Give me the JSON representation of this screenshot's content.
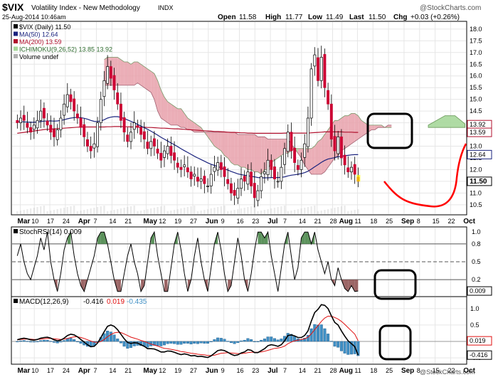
{
  "header": {
    "ticker": "$VIX",
    "name": "Volatility Index - New Methodology",
    "exchange": "INDX",
    "date": "25-Aug-2014 10:46am",
    "open_label": "Open",
    "open": "11.58",
    "high_label": "High",
    "high": "11.77",
    "low_label": "Low",
    "low": "11.49",
    "last_label": "Last",
    "last": "11.50",
    "chg_label": "Chg",
    "chg": "+0.03 (+0.26%)",
    "watermark": "@StockCharts.com",
    "footer_watermark": "@StockCharts.com"
  },
  "colors": {
    "up": "#ffffff",
    "down": "#cc0033",
    "ma50": "#1a237e",
    "ma200": "#b0102d",
    "cloud_bear": "#e8a0aa",
    "cloud_bull": "#a6d79a",
    "volume": "#b0b0b0",
    "macd": "#000000",
    "signal": "#e01010",
    "histogram": "#3f8fc4",
    "annotation": "#000000",
    "drawn_curve": "#ff0000"
  },
  "chart_data": [
    {
      "type": "candlestick",
      "panel": "price",
      "legend": [
        "$VIX (Daily) 11.50",
        "MA(50) 12.64",
        "MA(200) 13.59",
        "ICHIMOKU(9,26,52) 13.85 13.92",
        "Volume undef"
      ],
      "x_labels": [
        "Mar",
        "10",
        "17",
        "24",
        "Apr",
        "7",
        "14",
        "21",
        "May",
        "12",
        "19",
        "27",
        "Jun",
        "9",
        "16",
        "23",
        "Jul",
        "7",
        "14",
        "21",
        "28",
        "Aug",
        "11",
        "18",
        "25",
        "Sep",
        "8",
        "15",
        "22",
        "Oct"
      ],
      "y_ticks": [
        10.5,
        11.0,
        11.5,
        12.0,
        12.5,
        13.0,
        13.5,
        14.0,
        14.5,
        15.0,
        15.5,
        16.0,
        16.5,
        17.0,
        17.5,
        18.0
      ],
      "ylim": [
        10.1,
        18.3
      ],
      "price_tags": [
        {
          "value": 13.92,
          "text": "13.92"
        },
        {
          "value": 13.59,
          "text": "13.59"
        },
        {
          "value": 12.64,
          "text": "12.64"
        },
        {
          "value": 11.5,
          "text": "11.50"
        }
      ],
      "close": [
        14.0,
        14.2,
        14.1,
        13.8,
        13.6,
        13.9,
        14.1,
        14.5,
        14.2,
        13.9,
        13.6,
        13.4,
        13.7,
        14.2,
        14.8,
        15.2,
        14.9,
        14.5,
        14.2,
        13.8,
        13.4,
        13.0,
        12.8,
        13.1,
        14.0,
        15.0,
        15.8,
        16.4,
        15.9,
        15.4,
        14.8,
        14.1,
        13.6,
        13.2,
        13.6,
        14.0,
        13.8,
        13.5,
        13.3,
        12.9,
        13.2,
        13.0,
        12.7,
        12.4,
        12.8,
        13.0,
        12.6,
        12.4,
        12.1,
        12.0,
        12.2,
        11.9,
        11.6,
        11.8,
        11.5,
        11.6,
        11.4,
        11.3,
        11.8,
        12.1,
        12.3,
        12.0,
        11.7,
        11.4,
        11.0,
        10.9,
        11.2,
        11.6,
        11.5,
        11.9,
        11.3,
        10.8,
        11.1,
        11.7,
        11.9,
        12.4,
        12.0,
        11.6,
        11.5,
        12.1,
        12.9,
        13.6,
        12.8,
        12.3,
        12.0,
        12.4,
        13.1,
        14.2,
        16.3,
        16.9,
        15.8,
        16.8,
        15.5,
        14.8,
        13.3,
        12.8,
        13.4,
        12.5,
        12.2,
        11.9,
        12.1,
        11.8,
        11.5
      ],
      "ma50": [
        14.05,
        14.05,
        14.04,
        14.03,
        14.02,
        14.02,
        14.03,
        14.05,
        14.07,
        14.08,
        14.08,
        14.07,
        14.08,
        14.1,
        14.13,
        14.17,
        14.2,
        14.22,
        14.23,
        14.22,
        14.19,
        14.15,
        14.1,
        14.06,
        14.05,
        14.08,
        14.13,
        14.2,
        14.24,
        14.26,
        14.26,
        14.23,
        14.18,
        14.12,
        14.06,
        14.0,
        13.93,
        13.86,
        13.79,
        13.72,
        13.64,
        13.56,
        13.47,
        13.38,
        13.3,
        13.22,
        13.14,
        13.06,
        12.98,
        12.89,
        12.81,
        12.73,
        12.65,
        12.57,
        12.5,
        12.43,
        12.36,
        12.29,
        12.23,
        12.18,
        12.13,
        12.08,
        12.03,
        11.98,
        11.92,
        11.87,
        11.82,
        11.79,
        11.76,
        11.74,
        11.71,
        11.69,
        11.66,
        11.65,
        11.65,
        11.65,
        11.66,
        11.66,
        11.66,
        11.67,
        11.69,
        11.73,
        11.76,
        11.78,
        11.8,
        11.83,
        11.87,
        11.93,
        12.02,
        12.12,
        12.21,
        12.31,
        12.39,
        12.45,
        12.48,
        12.51,
        12.55,
        12.57,
        12.59,
        12.61,
        12.63,
        12.64,
        12.64
      ],
      "ma200": [
        13.55,
        13.57,
        13.59,
        13.61,
        13.63,
        13.65,
        13.67,
        13.69,
        13.71,
        13.72,
        13.73,
        13.74,
        13.75,
        13.76,
        13.77,
        13.78,
        13.79,
        13.8,
        13.81,
        13.82,
        13.82,
        13.82,
        13.82,
        13.82,
        13.82,
        13.82,
        13.82,
        13.83,
        13.83,
        13.84,
        13.84,
        13.84,
        13.83,
        13.83,
        13.82,
        13.82,
        13.82,
        13.81,
        13.81,
        13.8,
        13.8,
        13.79,
        13.78,
        13.77,
        13.77,
        13.76,
        13.75,
        13.74,
        13.74,
        13.73,
        13.72,
        13.71,
        13.7,
        13.69,
        13.68,
        13.67,
        13.66,
        13.65,
        13.64,
        13.63,
        13.63,
        13.62,
        13.61,
        13.6,
        13.59,
        13.59,
        13.58,
        13.57,
        13.57,
        13.56,
        13.56,
        13.55,
        13.55,
        13.55,
        13.55,
        13.55,
        13.55,
        13.55,
        13.55,
        13.55,
        13.56,
        13.56,
        13.56,
        13.56,
        13.56,
        13.56,
        13.56,
        13.56,
        13.57,
        13.58,
        13.59,
        13.6,
        13.61,
        13.61,
        13.61,
        13.61,
        13.61,
        13.61,
        13.6,
        13.6,
        13.6,
        13.59,
        13.59
      ],
      "cloud_series": [
        {
          "name": "Senkou A",
          "start_index": 26,
          "values": [
            16.7,
            16.8,
            16.8,
            16.8,
            16.8,
            16.7,
            16.6,
            16.6,
            16.5,
            16.6,
            16.6,
            16.5,
            16.4,
            16.3,
            16.2,
            16.1,
            15.8,
            15.4,
            15.1,
            14.9,
            14.8,
            14.7,
            14.6,
            14.6,
            14.4,
            14.2,
            14.1,
            14.0,
            13.9,
            13.8,
            13.6,
            13.4,
            13.2,
            13.0,
            12.9,
            12.8,
            12.6,
            12.5,
            12.3,
            12.2,
            12.2,
            12.1,
            12.1,
            12.0,
            12.0,
            11.9,
            11.9,
            11.8,
            12.0,
            12.0,
            12.3,
            12.4,
            12.5,
            12.6,
            12.7,
            12.7,
            12.8,
            12.9,
            12.9,
            12.9,
            12.9,
            12.9,
            12.9,
            13.0,
            13.2,
            13.3,
            13.5,
            13.7,
            13.9,
            14.1,
            14.1,
            14.2,
            14.3,
            14.3,
            14.4,
            14.4,
            14.3,
            14.1,
            14.0,
            13.9,
            13.9,
            13.9,
            13.9,
            13.9,
            13.8,
            13.8,
            13.8
          ]
        },
        {
          "name": "Senkou B",
          "start_index": 26,
          "values": [
            15.6,
            15.6,
            15.6,
            15.6,
            15.6,
            15.6,
            15.6,
            15.6,
            15.6,
            15.6,
            15.7,
            15.6,
            15.5,
            15.4,
            15.3,
            15.0,
            14.5,
            14.2,
            14.1,
            14.0,
            13.9,
            13.9,
            13.9,
            13.8,
            13.8,
            13.7,
            13.7,
            13.6,
            13.6,
            13.6,
            13.6,
            13.6,
            13.6,
            13.6,
            13.6,
            13.6,
            13.6,
            13.6,
            13.6,
            13.6,
            13.5,
            13.5,
            13.5,
            13.5,
            13.5,
            13.5,
            13.4,
            13.4,
            13.4,
            13.3,
            13.3,
            13.3,
            13.3,
            13.3,
            13.3,
            13.3,
            13.1,
            12.9,
            12.7,
            12.5,
            12.2,
            12.0,
            11.8,
            11.8,
            11.8,
            11.8,
            11.9,
            12.1,
            12.3,
            12.5,
            12.6,
            12.8,
            12.9,
            13.0,
            13.1,
            13.2,
            13.3,
            13.4,
            13.5,
            13.6,
            13.7,
            13.7,
            13.8,
            13.8,
            13.8,
            13.9,
            13.9
          ]
        }
      ]
    },
    {
      "type": "line",
      "panel": "stochrsi",
      "legend": [
        "StochRSI(14) 0.009"
      ],
      "y_ticks": [
        0.2,
        0.5,
        0.8,
        1.0
      ],
      "ylim": [
        -0.05,
        1.05
      ],
      "reference_lines": [
        0.2,
        0.5,
        0.8
      ],
      "price_tags": [
        {
          "value": 0.009,
          "text": "0.009"
        }
      ],
      "values": [
        0.6,
        0.8,
        0.5,
        0.3,
        0.2,
        0.4,
        0.6,
        0.9,
        0.7,
        1.0,
        0.5,
        0.2,
        0.0,
        0.3,
        0.7,
        0.9,
        1.0,
        0.6,
        0.3,
        0.1,
        0.0,
        0.2,
        0.4,
        0.6,
        0.9,
        1.0,
        1.0,
        0.8,
        0.5,
        0.2,
        0.0,
        0.0,
        0.3,
        0.6,
        0.8,
        0.5,
        0.3,
        0.0,
        0.1,
        0.5,
        0.9,
        1.0,
        0.6,
        0.3,
        0.0,
        0.0,
        0.4,
        0.8,
        1.0,
        0.7,
        0.3,
        0.0,
        0.2,
        0.6,
        0.9,
        0.5,
        0.2,
        0.0,
        0.4,
        0.8,
        1.0,
        0.7,
        0.3,
        0.0,
        0.1,
        0.5,
        0.9,
        0.6,
        0.2,
        0.0,
        0.3,
        0.7,
        1.0,
        1.0,
        0.9,
        1.0,
        0.6,
        0.3,
        0.0,
        0.4,
        0.8,
        1.0,
        0.6,
        0.2,
        0.4,
        0.9,
        1.0,
        1.0,
        0.8,
        1.0,
        0.7,
        0.5,
        0.3,
        0.5,
        0.2,
        0.1,
        0.4,
        0.2,
        0.05,
        0.0,
        0.1,
        0.0,
        0.009
      ]
    },
    {
      "type": "line",
      "panel": "macd",
      "legend": [
        "MACD(12,26,9)",
        "-0.416",
        "0.019",
        "-0.435"
      ],
      "y_ticks": [
        -0.5,
        0.0,
        0.5,
        1.0
      ],
      "ylim": [
        -0.65,
        1.3
      ],
      "price_tags": [
        {
          "value": 0.019,
          "text": "0.019"
        },
        {
          "value": -0.416,
          "text": "-0.416"
        }
      ],
      "series": [
        {
          "name": "MACD",
          "values": [
            0.05,
            0.08,
            0.1,
            0.08,
            0.05,
            0.04,
            0.06,
            0.1,
            0.12,
            0.13,
            0.1,
            0.05,
            0.02,
            0.04,
            0.1,
            0.18,
            0.22,
            0.2,
            0.14,
            0.06,
            -0.02,
            -0.1,
            -0.16,
            -0.15,
            -0.05,
            0.12,
            0.3,
            0.46,
            0.5,
            0.46,
            0.36,
            0.22,
            0.08,
            -0.03,
            -0.06,
            -0.04,
            -0.05,
            -0.1,
            -0.15,
            -0.22,
            -0.22,
            -0.23,
            -0.27,
            -0.32,
            -0.32,
            -0.29,
            -0.3,
            -0.33,
            -0.37,
            -0.4,
            -0.38,
            -0.4,
            -0.44,
            -0.43,
            -0.46,
            -0.45,
            -0.47,
            -0.49,
            -0.44,
            -0.36,
            -0.28,
            -0.26,
            -0.28,
            -0.33,
            -0.39,
            -0.43,
            -0.41,
            -0.35,
            -0.32,
            -0.25,
            -0.27,
            -0.34,
            -0.34,
            -0.28,
            -0.22,
            -0.13,
            -0.1,
            -0.12,
            -0.15,
            -0.1,
            0.02,
            0.18,
            0.2,
            0.17,
            0.12,
            0.12,
            0.18,
            0.32,
            0.62,
            0.88,
            0.98,
            1.12,
            1.1,
            1.0,
            0.78,
            0.58,
            0.5,
            0.32,
            0.16,
            0.02,
            -0.07,
            -0.16,
            -0.416
          ]
        },
        {
          "name": "Signal",
          "values": [
            0.05,
            0.06,
            0.07,
            0.07,
            0.07,
            0.06,
            0.06,
            0.07,
            0.08,
            0.09,
            0.09,
            0.08,
            0.07,
            0.06,
            0.07,
            0.09,
            0.12,
            0.14,
            0.14,
            0.12,
            0.09,
            0.05,
            0.01,
            -0.02,
            -0.03,
            0.0,
            0.06,
            0.14,
            0.21,
            0.26,
            0.28,
            0.27,
            0.23,
            0.18,
            0.13,
            0.1,
            0.07,
            0.03,
            0.0,
            -0.04,
            -0.08,
            -0.11,
            -0.14,
            -0.18,
            -0.21,
            -0.22,
            -0.24,
            -0.26,
            -0.28,
            -0.31,
            -0.32,
            -0.34,
            -0.36,
            -0.37,
            -0.39,
            -0.4,
            -0.41,
            -0.43,
            -0.43,
            -0.42,
            -0.39,
            -0.36,
            -0.35,
            -0.34,
            -0.35,
            -0.36,
            -0.37,
            -0.37,
            -0.36,
            -0.34,
            -0.33,
            -0.33,
            -0.33,
            -0.32,
            -0.3,
            -0.27,
            -0.24,
            -0.21,
            -0.2,
            -0.18,
            -0.14,
            -0.07,
            -0.02,
            0.02,
            0.04,
            0.06,
            0.08,
            0.13,
            0.23,
            0.36,
            0.48,
            0.61,
            0.71,
            0.77,
            0.77,
            0.73,
            0.68,
            0.61,
            0.52,
            0.42,
            0.32,
            0.22,
            0.019
          ]
        },
        {
          "name": "Histogram",
          "values": [
            0.0,
            0.02,
            0.03,
            0.01,
            -0.02,
            -0.02,
            0.0,
            0.03,
            0.04,
            0.04,
            0.01,
            -0.03,
            -0.05,
            -0.02,
            0.03,
            0.09,
            0.1,
            0.06,
            0.0,
            -0.06,
            -0.11,
            -0.15,
            -0.17,
            -0.13,
            -0.02,
            0.12,
            0.24,
            0.32,
            0.29,
            0.2,
            0.08,
            -0.05,
            -0.15,
            -0.21,
            -0.19,
            -0.14,
            -0.12,
            -0.13,
            -0.15,
            -0.18,
            -0.14,
            -0.12,
            -0.13,
            -0.14,
            -0.11,
            -0.07,
            -0.06,
            -0.07,
            -0.09,
            -0.09,
            -0.06,
            -0.06,
            -0.08,
            -0.06,
            -0.07,
            -0.05,
            -0.06,
            -0.06,
            -0.01,
            0.06,
            0.11,
            0.1,
            0.07,
            0.01,
            -0.04,
            -0.07,
            -0.04,
            0.02,
            0.04,
            0.09,
            0.06,
            -0.01,
            -0.01,
            0.04,
            0.08,
            0.14,
            0.14,
            0.09,
            0.05,
            0.08,
            0.16,
            0.25,
            0.22,
            0.15,
            0.08,
            0.06,
            0.1,
            0.19,
            0.39,
            0.52,
            0.5,
            0.51,
            0.39,
            0.23,
            0.01,
            -0.15,
            -0.18,
            -0.29,
            -0.36,
            -0.4,
            -0.39,
            -0.38,
            -0.435
          ]
        }
      ]
    }
  ]
}
